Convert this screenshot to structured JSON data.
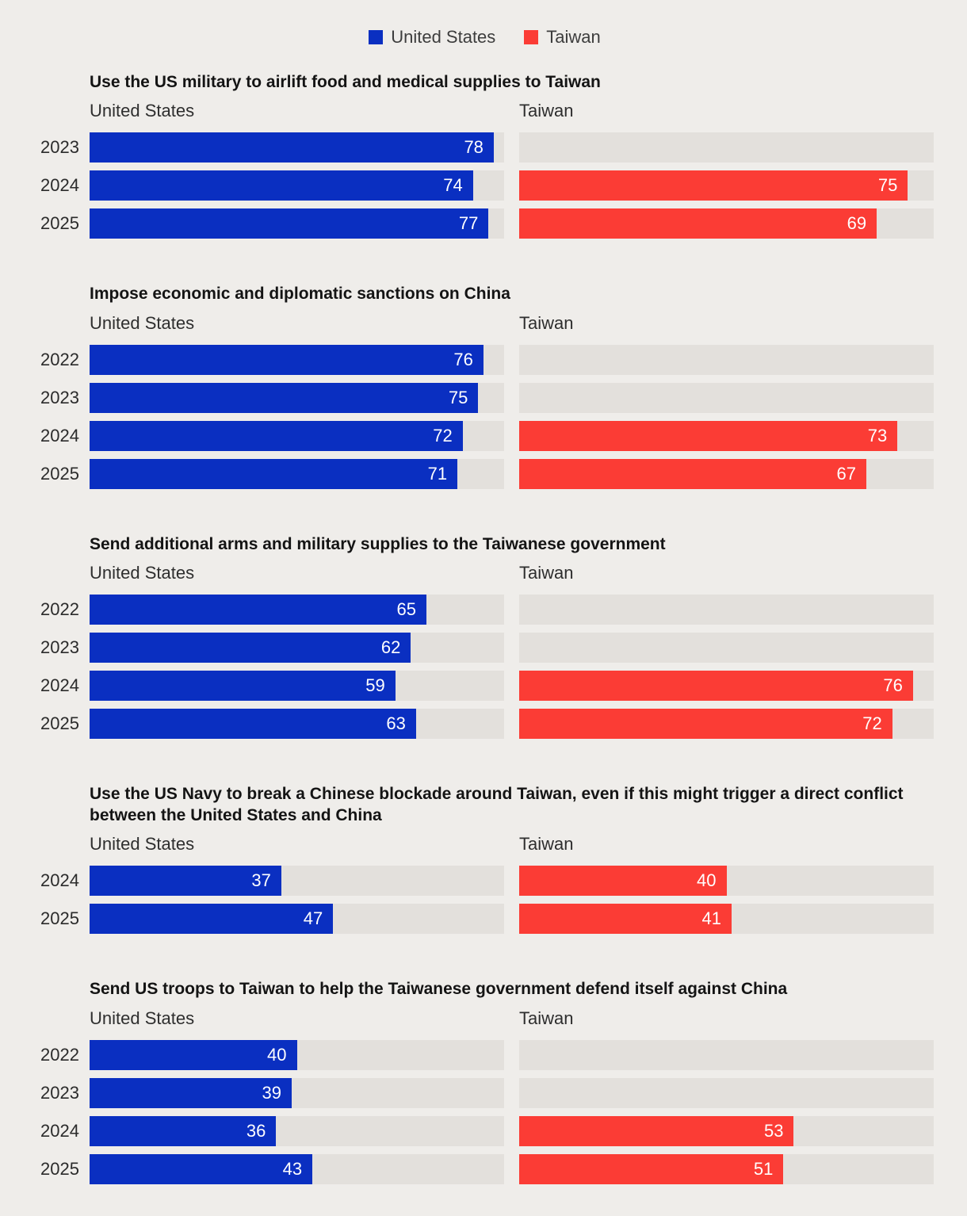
{
  "colors": {
    "background": "#efedea",
    "bar_track": "#e3e0dc",
    "united_states": "#0a2fc1",
    "taiwan": "#fb3c35",
    "value_label": "#ffffff"
  },
  "legend": {
    "items": [
      {
        "label": "United States",
        "color": "#0a2fc1"
      },
      {
        "label": "Taiwan",
        "color": "#fb3c35"
      }
    ]
  },
  "chart_data": [
    {
      "type": "bar",
      "title": "Use the US military to airlift food and medical supplies to Taiwan",
      "columns": [
        "United States",
        "Taiwan"
      ],
      "categories": [
        "2023",
        "2024",
        "2025"
      ],
      "series": [
        {
          "name": "United States",
          "values": [
            78,
            74,
            77
          ]
        },
        {
          "name": "Taiwan",
          "values": [
            null,
            75,
            69
          ]
        }
      ],
      "xlim": [
        0,
        80
      ],
      "grid": false,
      "legend_position": "top"
    },
    {
      "type": "bar",
      "title": "Impose economic and diplomatic sanctions on China",
      "columns": [
        "United States",
        "Taiwan"
      ],
      "categories": [
        "2022",
        "2023",
        "2024",
        "2025"
      ],
      "series": [
        {
          "name": "United States",
          "values": [
            76,
            75,
            72,
            71
          ]
        },
        {
          "name": "Taiwan",
          "values": [
            null,
            null,
            73,
            67
          ]
        }
      ],
      "xlim": [
        0,
        80
      ],
      "grid": false
    },
    {
      "type": "bar",
      "title": "Send additional arms and military supplies to the Taiwanese government",
      "columns": [
        "United States",
        "Taiwan"
      ],
      "categories": [
        "2022",
        "2023",
        "2024",
        "2025"
      ],
      "series": [
        {
          "name": "United States",
          "values": [
            65,
            62,
            59,
            63
          ]
        },
        {
          "name": "Taiwan",
          "values": [
            null,
            null,
            76,
            72
          ]
        }
      ],
      "xlim": [
        0,
        80
      ],
      "grid": false
    },
    {
      "type": "bar",
      "title": "Use the US Navy to break a Chinese blockade around Taiwan, even if this might trigger a direct conflict between the United States and China",
      "columns": [
        "United States",
        "Taiwan"
      ],
      "categories": [
        "2024",
        "2025"
      ],
      "series": [
        {
          "name": "United States",
          "values": [
            37,
            47
          ]
        },
        {
          "name": "Taiwan",
          "values": [
            40,
            41
          ]
        }
      ],
      "xlim": [
        0,
        80
      ],
      "grid": false
    },
    {
      "type": "bar",
      "title": "Send US troops to Taiwan to help the Taiwanese government defend itself against China",
      "columns": [
        "United States",
        "Taiwan"
      ],
      "categories": [
        "2022",
        "2023",
        "2024",
        "2025"
      ],
      "series": [
        {
          "name": "United States",
          "values": [
            40,
            39,
            36,
            43
          ]
        },
        {
          "name": "Taiwan",
          "values": [
            null,
            null,
            53,
            51
          ]
        }
      ],
      "xlim": [
        0,
        80
      ],
      "grid": false
    }
  ]
}
